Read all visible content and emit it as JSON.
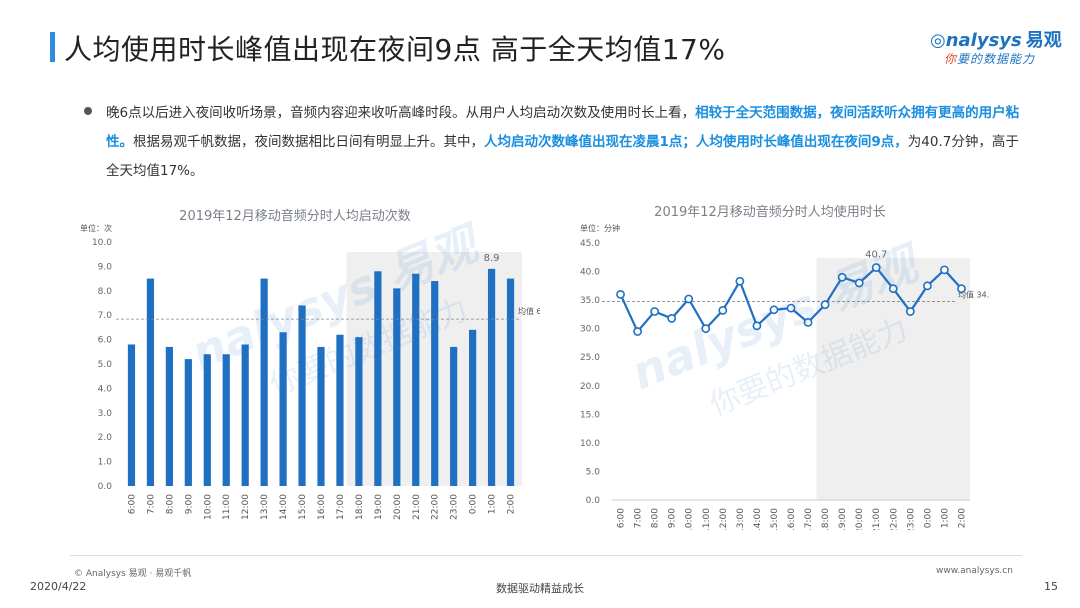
{
  "header": {
    "title": "人均使用时长峰值出现在夜间9点 高于全天均值17%",
    "logo_main": "nalysys",
    "logo_mark": "◎",
    "logo_cn": "易观",
    "logo_sub_first": "你",
    "logo_sub_rest": "要的数据能力"
  },
  "summary": {
    "p1": "晚6点以后进入夜间收听场景，音频内容迎来收听高峰时段。从用户人均启动次数及使用时长上看，",
    "h1": "相较于全天范围数据，夜间活跃听众拥有更高的用户粘性。",
    "p2": "根据易观千帆数据，夜间数据相比日间有明显上升。其中，",
    "h2": "人均启动次数峰值出现在凌晨1点；人均使用时长峰值出现在夜间9点，",
    "p3": "为40.7分钟，高于全天均值17%。"
  },
  "chart_data": [
    {
      "type": "bar",
      "title": "2019年12月移动音频分时人均启动次数",
      "unit_label": "单位：次",
      "categories": [
        "6:00",
        "7:00",
        "8:00",
        "9:00",
        "10:00",
        "11:00",
        "12:00",
        "13:00",
        "14:00",
        "15:00",
        "16:00",
        "17:00",
        "18:00",
        "19:00",
        "20:00",
        "21:00",
        "22:00",
        "23:00",
        "0:00",
        "1:00",
        "2:00"
      ],
      "values": [
        5.8,
        8.5,
        5.7,
        5.2,
        5.4,
        5.4,
        5.8,
        8.5,
        6.3,
        7.4,
        5.7,
        6.2,
        6.1,
        8.8,
        8.1,
        8.7,
        8.4,
        5.7,
        6.4,
        8.9,
        8.5
      ],
      "ylim": [
        0,
        10
      ],
      "yticks": [
        "0.0",
        "1.0",
        "2.0",
        "3.0",
        "4.0",
        "5.0",
        "6.0",
        "7.0",
        "8.0",
        "9.0",
        "10.0"
      ],
      "average": 6.84,
      "average_label": "均值 6.84",
      "peak_label": "8.9",
      "peak_index": 19,
      "highlight_from": 12,
      "color": "#1f6fc3"
    },
    {
      "type": "line",
      "title": "2019年12月移动音频分时人均使用时长",
      "unit_label": "单位：分钟",
      "categories": [
        "6:00",
        "7:00",
        "8:00",
        "9:00",
        "10:00",
        "11:00",
        "12:00",
        "13:00",
        "14:00",
        "15:00",
        "16:00",
        "17:00",
        "18:00",
        "19:00",
        "20:00",
        "21:00",
        "22:00",
        "23:00",
        "0:00",
        "1:00",
        "2:00"
      ],
      "values": [
        36.0,
        29.5,
        33.0,
        31.8,
        35.2,
        30.0,
        33.2,
        38.3,
        30.5,
        33.3,
        33.6,
        31.1,
        34.2,
        39.0,
        38.0,
        40.7,
        37.0,
        33.0,
        37.5,
        40.3,
        37.0
      ],
      "ylim": [
        0,
        45
      ],
      "yticks": [
        "0.0",
        "5.0",
        "10.0",
        "15.0",
        "20.0",
        "25.0",
        "30.0",
        "35.0",
        "40.0",
        "45.0"
      ],
      "average": 34.77,
      "average_label": "均值 34.77",
      "peak_label": "40.7",
      "peak_index": 15,
      "highlight_from": 12,
      "color": "#1f6fc3"
    }
  ],
  "watermark": {
    "brand": "nalysys 易观",
    "slogan": "你要的数据能力"
  },
  "footer": {
    "copyright": "© Analysys 易观 · 易观千帆",
    "date": "2020/4/22",
    "slogan": "数据驱动精益成长",
    "url": "www.analysys.cn",
    "page": "15"
  }
}
